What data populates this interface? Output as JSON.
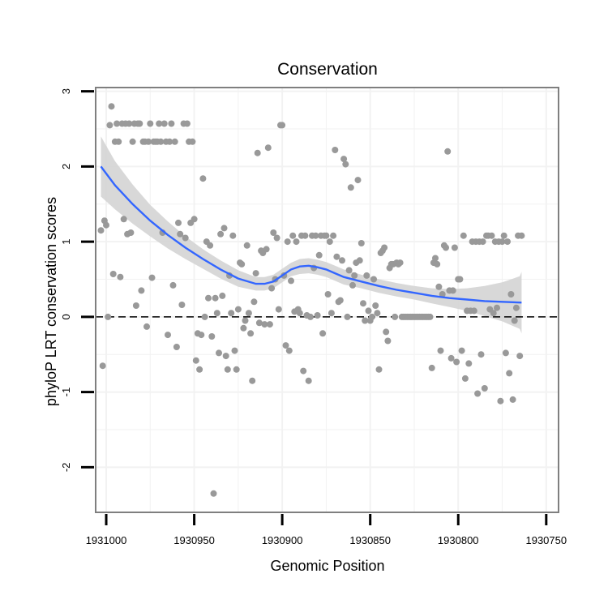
{
  "chart_data": {
    "type": "scatter",
    "title": "Conservation",
    "xlabel": "Genomic Position",
    "ylabel": "phyloP LRT conservation scores",
    "x_reversed": true,
    "xlim": [
      1931006,
      1930743
    ],
    "ylim": [
      -2.6,
      3.05
    ],
    "x_ticks": [
      1931000,
      1930950,
      1930900,
      1930850,
      1930800,
      1930750
    ],
    "x_tick_labels": [
      "1931000",
      "1930950",
      "1930900",
      "1930850",
      "1930800",
      "1930750"
    ],
    "y_ticks": [
      -2,
      -1,
      0,
      1,
      2,
      3
    ],
    "y_tick_labels": [
      "-2",
      "-1",
      "0",
      "1",
      "2",
      "3"
    ],
    "grid": true,
    "reference_line": {
      "y": 0,
      "style": "dashed",
      "color": "#000000"
    },
    "colors": {
      "points": "#999999",
      "smooth": "#3366ff",
      "band": "#d4d4d4",
      "frame": "#7f7f7f",
      "grid": "#f2f2f2"
    },
    "points": [
      [
        1931003,
        1.15
      ],
      [
        1931002,
        -0.65
      ],
      [
        1931001,
        1.28
      ],
      [
        1931000,
        1.22
      ],
      [
        1930999,
        0.0
      ],
      [
        1930998,
        2.55
      ],
      [
        1930997,
        2.8
      ],
      [
        1930996,
        0.57
      ],
      [
        1930995,
        2.33
      ],
      [
        1930994,
        2.57
      ],
      [
        1930993,
        2.33
      ],
      [
        1930992,
        0.53
      ],
      [
        1930991,
        2.57
      ],
      [
        1930990,
        1.3
      ],
      [
        1930989,
        2.57
      ],
      [
        1930988,
        1.1
      ],
      [
        1930987,
        2.57
      ],
      [
        1930986,
        1.12
      ],
      [
        1930985,
        2.33
      ],
      [
        1930984,
        2.57
      ],
      [
        1930983,
        0.15
      ],
      [
        1930982,
        2.57
      ],
      [
        1930981,
        2.57
      ],
      [
        1930980,
        0.35
      ],
      [
        1930979,
        2.33
      ],
      [
        1930978,
        2.33
      ],
      [
        1930977,
        -0.13
      ],
      [
        1930976,
        2.33
      ],
      [
        1930975,
        2.57
      ],
      [
        1930974,
        0.52
      ],
      [
        1930973,
        2.33
      ],
      [
        1930972,
        2.33
      ],
      [
        1930971,
        2.33
      ],
      [
        1930970,
        2.57
      ],
      [
        1930969,
        2.33
      ],
      [
        1930968,
        1.12
      ],
      [
        1930967,
        2.57
      ],
      [
        1930966,
        2.33
      ],
      [
        1930965,
        -0.24
      ],
      [
        1930964,
        2.33
      ],
      [
        1930963,
        2.57
      ],
      [
        1930962,
        0.42
      ],
      [
        1930961,
        2.33
      ],
      [
        1930960,
        -0.4
      ],
      [
        1930959,
        1.25
      ],
      [
        1930958,
        1.1
      ],
      [
        1930957,
        0.16
      ],
      [
        1930956,
        2.57
      ],
      [
        1930955,
        1.05
      ],
      [
        1930954,
        2.57
      ],
      [
        1930953,
        2.33
      ],
      [
        1930952,
        1.25
      ],
      [
        1930951,
        2.33
      ],
      [
        1930950,
        1.3
      ],
      [
        1930949,
        -0.58
      ],
      [
        1930948,
        -0.22
      ],
      [
        1930947,
        -0.7
      ],
      [
        1930946,
        -0.24
      ],
      [
        1930945,
        1.84
      ],
      [
        1930944,
        0.0
      ],
      [
        1930943,
        1.0
      ],
      [
        1930942,
        0.25
      ],
      [
        1930941,
        0.95
      ],
      [
        1930940,
        -0.26
      ],
      [
        1930939,
        -2.35
      ],
      [
        1930938,
        0.25
      ],
      [
        1930937,
        0.05
      ],
      [
        1930936,
        -0.48
      ],
      [
        1930935,
        1.1
      ],
      [
        1930934,
        0.28
      ],
      [
        1930933,
        1.18
      ],
      [
        1930932,
        -0.52
      ],
      [
        1930931,
        -0.7
      ],
      [
        1930930,
        0.55
      ],
      [
        1930929,
        0.05
      ],
      [
        1930928,
        1.08
      ],
      [
        1930927,
        -0.45
      ],
      [
        1930926,
        -0.7
      ],
      [
        1930925,
        0.1
      ],
      [
        1930924,
        0.72
      ],
      [
        1930923,
        0.7
      ],
      [
        1930922,
        -0.15
      ],
      [
        1930921,
        -0.05
      ],
      [
        1930920,
        0.95
      ],
      [
        1930919,
        0.05
      ],
      [
        1930918,
        -0.22
      ],
      [
        1930917,
        -0.85
      ],
      [
        1930916,
        0.2
      ],
      [
        1930915,
        0.58
      ],
      [
        1930914,
        2.18
      ],
      [
        1930913,
        -0.08
      ],
      [
        1930912,
        0.88
      ],
      [
        1930911,
        0.85
      ],
      [
        1930910,
        -0.1
      ],
      [
        1930909,
        0.9
      ],
      [
        1930908,
        2.25
      ],
      [
        1930907,
        -0.1
      ],
      [
        1930906,
        0.38
      ],
      [
        1930905,
        1.12
      ],
      [
        1930904,
        0.5
      ],
      [
        1930903,
        1.05
      ],
      [
        1930902,
        0.1
      ],
      [
        1930901,
        2.55
      ],
      [
        1930900,
        2.55
      ],
      [
        1930899,
        0.55
      ],
      [
        1930898,
        -0.38
      ],
      [
        1930897,
        1.0
      ],
      [
        1930896,
        -0.45
      ],
      [
        1930895,
        0.48
      ],
      [
        1930894,
        1.08
      ],
      [
        1930893,
        0.07
      ],
      [
        1930892,
        1.0
      ],
      [
        1930891,
        0.1
      ],
      [
        1930890,
        0.05
      ],
      [
        1930889,
        1.08
      ],
      [
        1930888,
        -0.72
      ],
      [
        1930887,
        1.08
      ],
      [
        1930886,
        0.02
      ],
      [
        1930885,
        -0.85
      ],
      [
        1930884,
        0.0
      ],
      [
        1930883,
        1.08
      ],
      [
        1930882,
        0.65
      ],
      [
        1930881,
        1.08
      ],
      [
        1930880,
        0.02
      ],
      [
        1930879,
        0.82
      ],
      [
        1930878,
        1.08
      ],
      [
        1930877,
        -0.22
      ],
      [
        1930876,
        1.08
      ],
      [
        1930875,
        1.08
      ],
      [
        1930874,
        0.3
      ],
      [
        1930873,
        1.0
      ],
      [
        1930872,
        0.05
      ],
      [
        1930871,
        1.08
      ],
      [
        1930870,
        2.22
      ],
      [
        1930869,
        0.8
      ],
      [
        1930868,
        0.2
      ],
      [
        1930867,
        0.22
      ],
      [
        1930866,
        0.75
      ],
      [
        1930865,
        2.1
      ],
      [
        1930864,
        2.03
      ],
      [
        1930863,
        0.0
      ],
      [
        1930862,
        0.62
      ],
      [
        1930861,
        1.72
      ],
      [
        1930860,
        0.42
      ],
      [
        1930859,
        0.55
      ],
      [
        1930858,
        0.72
      ],
      [
        1930857,
        1.82
      ],
      [
        1930856,
        0.75
      ],
      [
        1930855,
        0.98
      ],
      [
        1930854,
        0.18
      ],
      [
        1930853,
        -0.05
      ],
      [
        1930852,
        0.55
      ],
      [
        1930851,
        0.08
      ],
      [
        1930850,
        -0.05
      ],
      [
        1930849,
        0.0
      ],
      [
        1930848,
        0.5
      ],
      [
        1930847,
        0.15
      ],
      [
        1930846,
        0.05
      ],
      [
        1930845,
        -0.7
      ],
      [
        1930844,
        0.85
      ],
      [
        1930843,
        0.88
      ],
      [
        1930842,
        0.92
      ],
      [
        1930841,
        -0.2
      ],
      [
        1930840,
        -0.32
      ],
      [
        1930839,
        0.65
      ],
      [
        1930838,
        0.7
      ],
      [
        1930837,
        0.7
      ],
      [
        1930836,
        0.0
      ],
      [
        1930835,
        0.72
      ],
      [
        1930834,
        0.7
      ],
      [
        1930833,
        0.72
      ],
      [
        1930832,
        0.0
      ],
      [
        1930831,
        0.0
      ],
      [
        1930830,
        0.0
      ],
      [
        1930829,
        0.0
      ],
      [
        1930828,
        0.0
      ],
      [
        1930827,
        0.0
      ],
      [
        1930826,
        0.0
      ],
      [
        1930825,
        0.0
      ],
      [
        1930824,
        0.0
      ],
      [
        1930823,
        0.0
      ],
      [
        1930822,
        0.0
      ],
      [
        1930821,
        0.0
      ],
      [
        1930820,
        0.0
      ],
      [
        1930819,
        0.0
      ],
      [
        1930818,
        0.0
      ],
      [
        1930817,
        0.0
      ],
      [
        1930816,
        0.0
      ],
      [
        1930815,
        -0.68
      ],
      [
        1930814,
        0.72
      ],
      [
        1930813,
        0.78
      ],
      [
        1930812,
        0.7
      ],
      [
        1930811,
        0.4
      ],
      [
        1930810,
        -0.45
      ],
      [
        1930809,
        0.3
      ],
      [
        1930808,
        0.95
      ],
      [
        1930807,
        0.92
      ],
      [
        1930806,
        2.2
      ],
      [
        1930805,
        0.35
      ],
      [
        1930804,
        -0.55
      ],
      [
        1930803,
        0.35
      ],
      [
        1930802,
        0.92
      ],
      [
        1930801,
        -0.6
      ],
      [
        1930800,
        0.5
      ],
      [
        1930799,
        0.5
      ],
      [
        1930798,
        -0.45
      ],
      [
        1930797,
        1.08
      ],
      [
        1930796,
        -0.82
      ],
      [
        1930795,
        0.08
      ],
      [
        1930794,
        -0.62
      ],
      [
        1930793,
        0.08
      ],
      [
        1930792,
        1.0
      ],
      [
        1930791,
        0.08
      ],
      [
        1930790,
        1.0
      ],
      [
        1930789,
        -1.02
      ],
      [
        1930788,
        1.0
      ],
      [
        1930787,
        -0.5
      ],
      [
        1930786,
        1.0
      ],
      [
        1930785,
        -0.95
      ],
      [
        1930784,
        1.08
      ],
      [
        1930783,
        1.08
      ],
      [
        1930782,
        0.1
      ],
      [
        1930781,
        1.08
      ],
      [
        1930780,
        0.05
      ],
      [
        1930779,
        1.0
      ],
      [
        1930778,
        0.12
      ],
      [
        1930777,
        1.0
      ],
      [
        1930776,
        -1.12
      ],
      [
        1930775,
        1.0
      ],
      [
        1930774,
        1.08
      ],
      [
        1930773,
        -0.48
      ],
      [
        1930772,
        1.0
      ],
      [
        1930771,
        -0.75
      ],
      [
        1930770,
        0.3
      ],
      [
        1930769,
        -1.1
      ],
      [
        1930768,
        -0.05
      ],
      [
        1930767,
        0.12
      ],
      [
        1930766,
        1.08
      ],
      [
        1930765,
        -0.52
      ],
      [
        1930764,
        1.08
      ]
    ],
    "smooth": {
      "x": [
        1931003,
        1930995,
        1930985,
        1930975,
        1930965,
        1930955,
        1930945,
        1930935,
        1930925,
        1930915,
        1930910,
        1930905,
        1930900,
        1930895,
        1930890,
        1930885,
        1930880,
        1930875,
        1930870,
        1930865,
        1930855,
        1930845,
        1930835,
        1930825,
        1930815,
        1930805,
        1930795,
        1930785,
        1930775,
        1930765,
        1930764
      ],
      "y": [
        2.0,
        1.75,
        1.5,
        1.28,
        1.09,
        0.92,
        0.77,
        0.63,
        0.51,
        0.44,
        0.44,
        0.47,
        0.55,
        0.63,
        0.67,
        0.68,
        0.66,
        0.63,
        0.58,
        0.53,
        0.47,
        0.41,
        0.36,
        0.32,
        0.28,
        0.25,
        0.23,
        0.21,
        0.2,
        0.19,
        0.19
      ],
      "se_upper": [
        2.4,
        2.07,
        1.76,
        1.49,
        1.27,
        1.07,
        0.9,
        0.75,
        0.62,
        0.53,
        0.53,
        0.56,
        0.64,
        0.72,
        0.77,
        0.78,
        0.76,
        0.73,
        0.68,
        0.63,
        0.56,
        0.5,
        0.45,
        0.41,
        0.38,
        0.37,
        0.38,
        0.41,
        0.46,
        0.54,
        0.6
      ],
      "se_lower": [
        1.6,
        1.43,
        1.24,
        1.07,
        0.91,
        0.77,
        0.64,
        0.51,
        0.4,
        0.35,
        0.35,
        0.38,
        0.46,
        0.54,
        0.57,
        0.58,
        0.56,
        0.53,
        0.48,
        0.43,
        0.38,
        0.32,
        0.27,
        0.23,
        0.18,
        0.13,
        0.08,
        0.01,
        -0.06,
        -0.16,
        -0.22
      ]
    }
  }
}
